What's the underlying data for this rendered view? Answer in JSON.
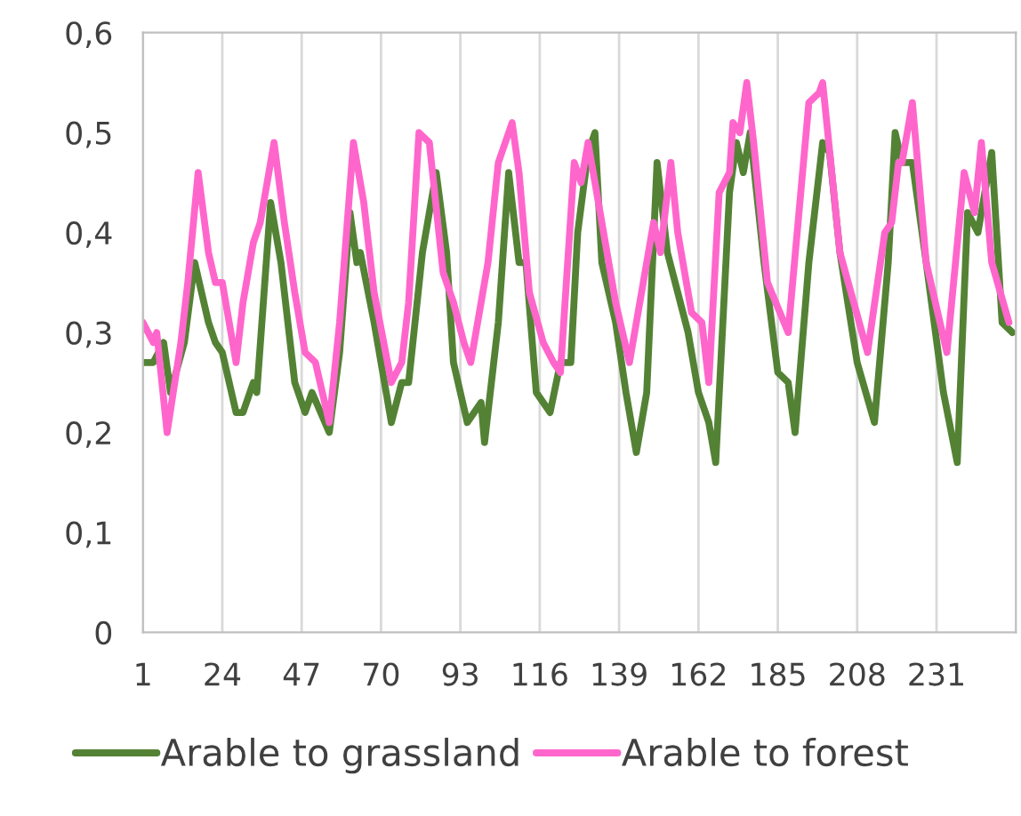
{
  "chart_data": {
    "type": "line",
    "xlim": [
      1,
      254
    ],
    "xticks": [
      1,
      24,
      47,
      70,
      93,
      116,
      139,
      162,
      185,
      208,
      231
    ],
    "ylim": [
      0,
      0.6
    ],
    "yticks": [
      {
        "value": 0,
        "label": "0"
      },
      {
        "value": 0.1,
        "label": "0,1"
      },
      {
        "value": 0.2,
        "label": "0,2"
      },
      {
        "value": 0.3,
        "label": "0,3"
      },
      {
        "value": 0.4,
        "label": "0,4"
      },
      {
        "value": 0.5,
        "label": "0,5"
      },
      {
        "value": 0.6,
        "label": "0,6"
      }
    ],
    "grid": "x",
    "legend": "bottom",
    "marker": "none",
    "line_style": "solid",
    "series": [
      {
        "name": "Arable to grassland",
        "color": "#548235",
        "x": [
          1,
          4,
          7,
          9,
          13,
          16,
          20,
          22,
          24,
          28,
          30,
          33,
          34,
          38,
          41,
          45,
          48,
          50,
          55,
          58,
          61,
          63,
          64,
          68,
          73,
          76,
          78,
          82,
          86,
          89,
          91,
          95,
          99,
          100,
          104,
          107,
          110,
          112,
          115,
          119,
          122,
          125,
          127,
          130,
          132,
          134,
          138,
          141,
          144,
          147,
          150,
          153,
          159,
          162,
          165,
          167,
          171,
          173,
          175,
          177,
          181,
          185,
          188,
          190,
          194,
          198,
          200,
          203,
          208,
          213,
          217,
          219,
          221,
          224,
          228,
          233,
          237,
          240,
          243,
          247,
          250,
          253
        ],
        "values": [
          0.27,
          0.27,
          0.29,
          0.24,
          0.29,
          0.37,
          0.31,
          0.29,
          0.28,
          0.22,
          0.22,
          0.25,
          0.24,
          0.43,
          0.37,
          0.25,
          0.22,
          0.24,
          0.2,
          0.28,
          0.42,
          0.37,
          0.38,
          0.31,
          0.21,
          0.25,
          0.25,
          0.38,
          0.46,
          0.38,
          0.27,
          0.21,
          0.23,
          0.19,
          0.31,
          0.46,
          0.37,
          0.37,
          0.24,
          0.22,
          0.27,
          0.27,
          0.4,
          0.48,
          0.5,
          0.37,
          0.31,
          0.24,
          0.18,
          0.24,
          0.47,
          0.38,
          0.3,
          0.24,
          0.21,
          0.17,
          0.44,
          0.49,
          0.46,
          0.5,
          0.37,
          0.26,
          0.25,
          0.2,
          0.37,
          0.49,
          0.48,
          0.38,
          0.27,
          0.21,
          0.37,
          0.5,
          0.47,
          0.47,
          0.37,
          0.24,
          0.17,
          0.42,
          0.4,
          0.48,
          0.31,
          0.3
        ]
      },
      {
        "name": "Arable to forest",
        "color": "#ff66cc",
        "x": [
          1,
          4,
          5,
          8,
          12,
          14,
          17,
          20,
          22,
          24,
          28,
          30,
          33,
          35,
          39,
          42,
          45,
          48,
          51,
          55,
          58,
          62,
          65,
          68,
          73,
          76,
          78,
          81,
          84,
          88,
          91,
          94,
          96,
          99,
          101,
          104,
          106,
          108,
          110,
          113,
          117,
          120,
          122,
          126,
          128,
          130,
          134,
          138,
          142,
          146,
          149,
          151,
          154,
          156,
          160,
          163,
          165,
          168,
          171,
          172,
          174,
          176,
          178,
          182,
          188,
          194,
          197,
          198,
          203,
          211,
          216,
          218,
          220,
          221,
          224,
          228,
          234,
          239,
          242,
          244,
          247,
          252
        ],
        "values": [
          0.31,
          0.29,
          0.3,
          0.2,
          0.29,
          0.35,
          0.46,
          0.38,
          0.35,
          0.35,
          0.27,
          0.33,
          0.39,
          0.41,
          0.49,
          0.41,
          0.34,
          0.28,
          0.27,
          0.21,
          0.31,
          0.49,
          0.43,
          0.34,
          0.25,
          0.27,
          0.33,
          0.5,
          0.49,
          0.36,
          0.33,
          0.29,
          0.27,
          0.33,
          0.37,
          0.47,
          0.49,
          0.51,
          0.46,
          0.34,
          0.29,
          0.27,
          0.26,
          0.47,
          0.45,
          0.49,
          0.41,
          0.33,
          0.27,
          0.35,
          0.41,
          0.38,
          0.47,
          0.4,
          0.32,
          0.31,
          0.25,
          0.44,
          0.46,
          0.51,
          0.5,
          0.55,
          0.49,
          0.35,
          0.3,
          0.53,
          0.54,
          0.55,
          0.38,
          0.28,
          0.4,
          0.41,
          0.47,
          0.47,
          0.53,
          0.37,
          0.28,
          0.46,
          0.42,
          0.49,
          0.37,
          0.31
        ]
      }
    ]
  }
}
